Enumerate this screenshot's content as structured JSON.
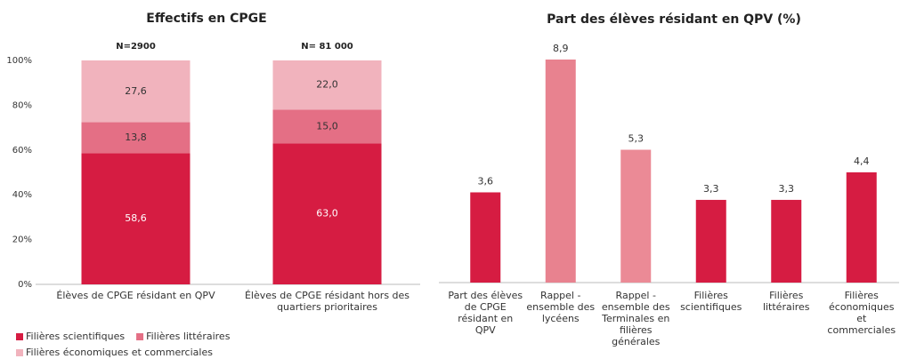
{
  "chart_data": [
    {
      "type": "stacked_bar",
      "title": "Effectifs en CPGE",
      "categories": [
        "Élèves de CPGE résidant en QPV",
        "Élèves de CPGE résidant hors des quartiers prioritaires"
      ],
      "annotations": [
        "N=2900",
        "N= 81 000"
      ],
      "series": [
        {
          "name": "Filières scientifiques",
          "color": "#d61c42",
          "values": [
            58.6,
            63.0
          ],
          "value_labels": [
            "58,6",
            "63,0"
          ]
        },
        {
          "name": "Filières littéraires",
          "color": "#e46f85",
          "values": [
            13.8,
            15.0
          ],
          "value_labels": [
            "13,8",
            "15,0"
          ]
        },
        {
          "name": "Filières économiques et commerciales",
          "color": "#f1b3bd",
          "values": [
            27.6,
            22.0
          ],
          "value_labels": [
            "27,6",
            "22,0"
          ]
        }
      ],
      "ylim": [
        0,
        100
      ],
      "yticks": [
        {
          "value": 0,
          "label": "0%"
        },
        {
          "value": 20,
          "label": "20%"
        },
        {
          "value": 40,
          "label": "40%"
        },
        {
          "value": 60,
          "label": "60%"
        },
        {
          "value": 80,
          "label": "80%"
        },
        {
          "value": 100,
          "label": "100%"
        }
      ],
      "legend": "bottom-left"
    },
    {
      "type": "bar",
      "title": "Part des élèves résidant en QPV (%)",
      "categories": [
        "Part des élèves de CPGE résidant en QPV",
        "Rappel - ensemble des lycéens",
        "Rappel - ensemble des Terminales en filières générales",
        "Filières scientifiques",
        "Filières littéraires",
        "Filières économiques et commerciales"
      ],
      "values": [
        3.6,
        8.9,
        5.3,
        3.3,
        3.3,
        4.4
      ],
      "value_labels": [
        "3,6",
        "8,9",
        "5,3",
        "3,3",
        "3,3",
        "4,4"
      ],
      "colors": [
        "#d61c42",
        "#e8828f",
        "#eb8a96",
        "#d61c42",
        "#d61c42",
        "#d61c42"
      ]
    }
  ]
}
